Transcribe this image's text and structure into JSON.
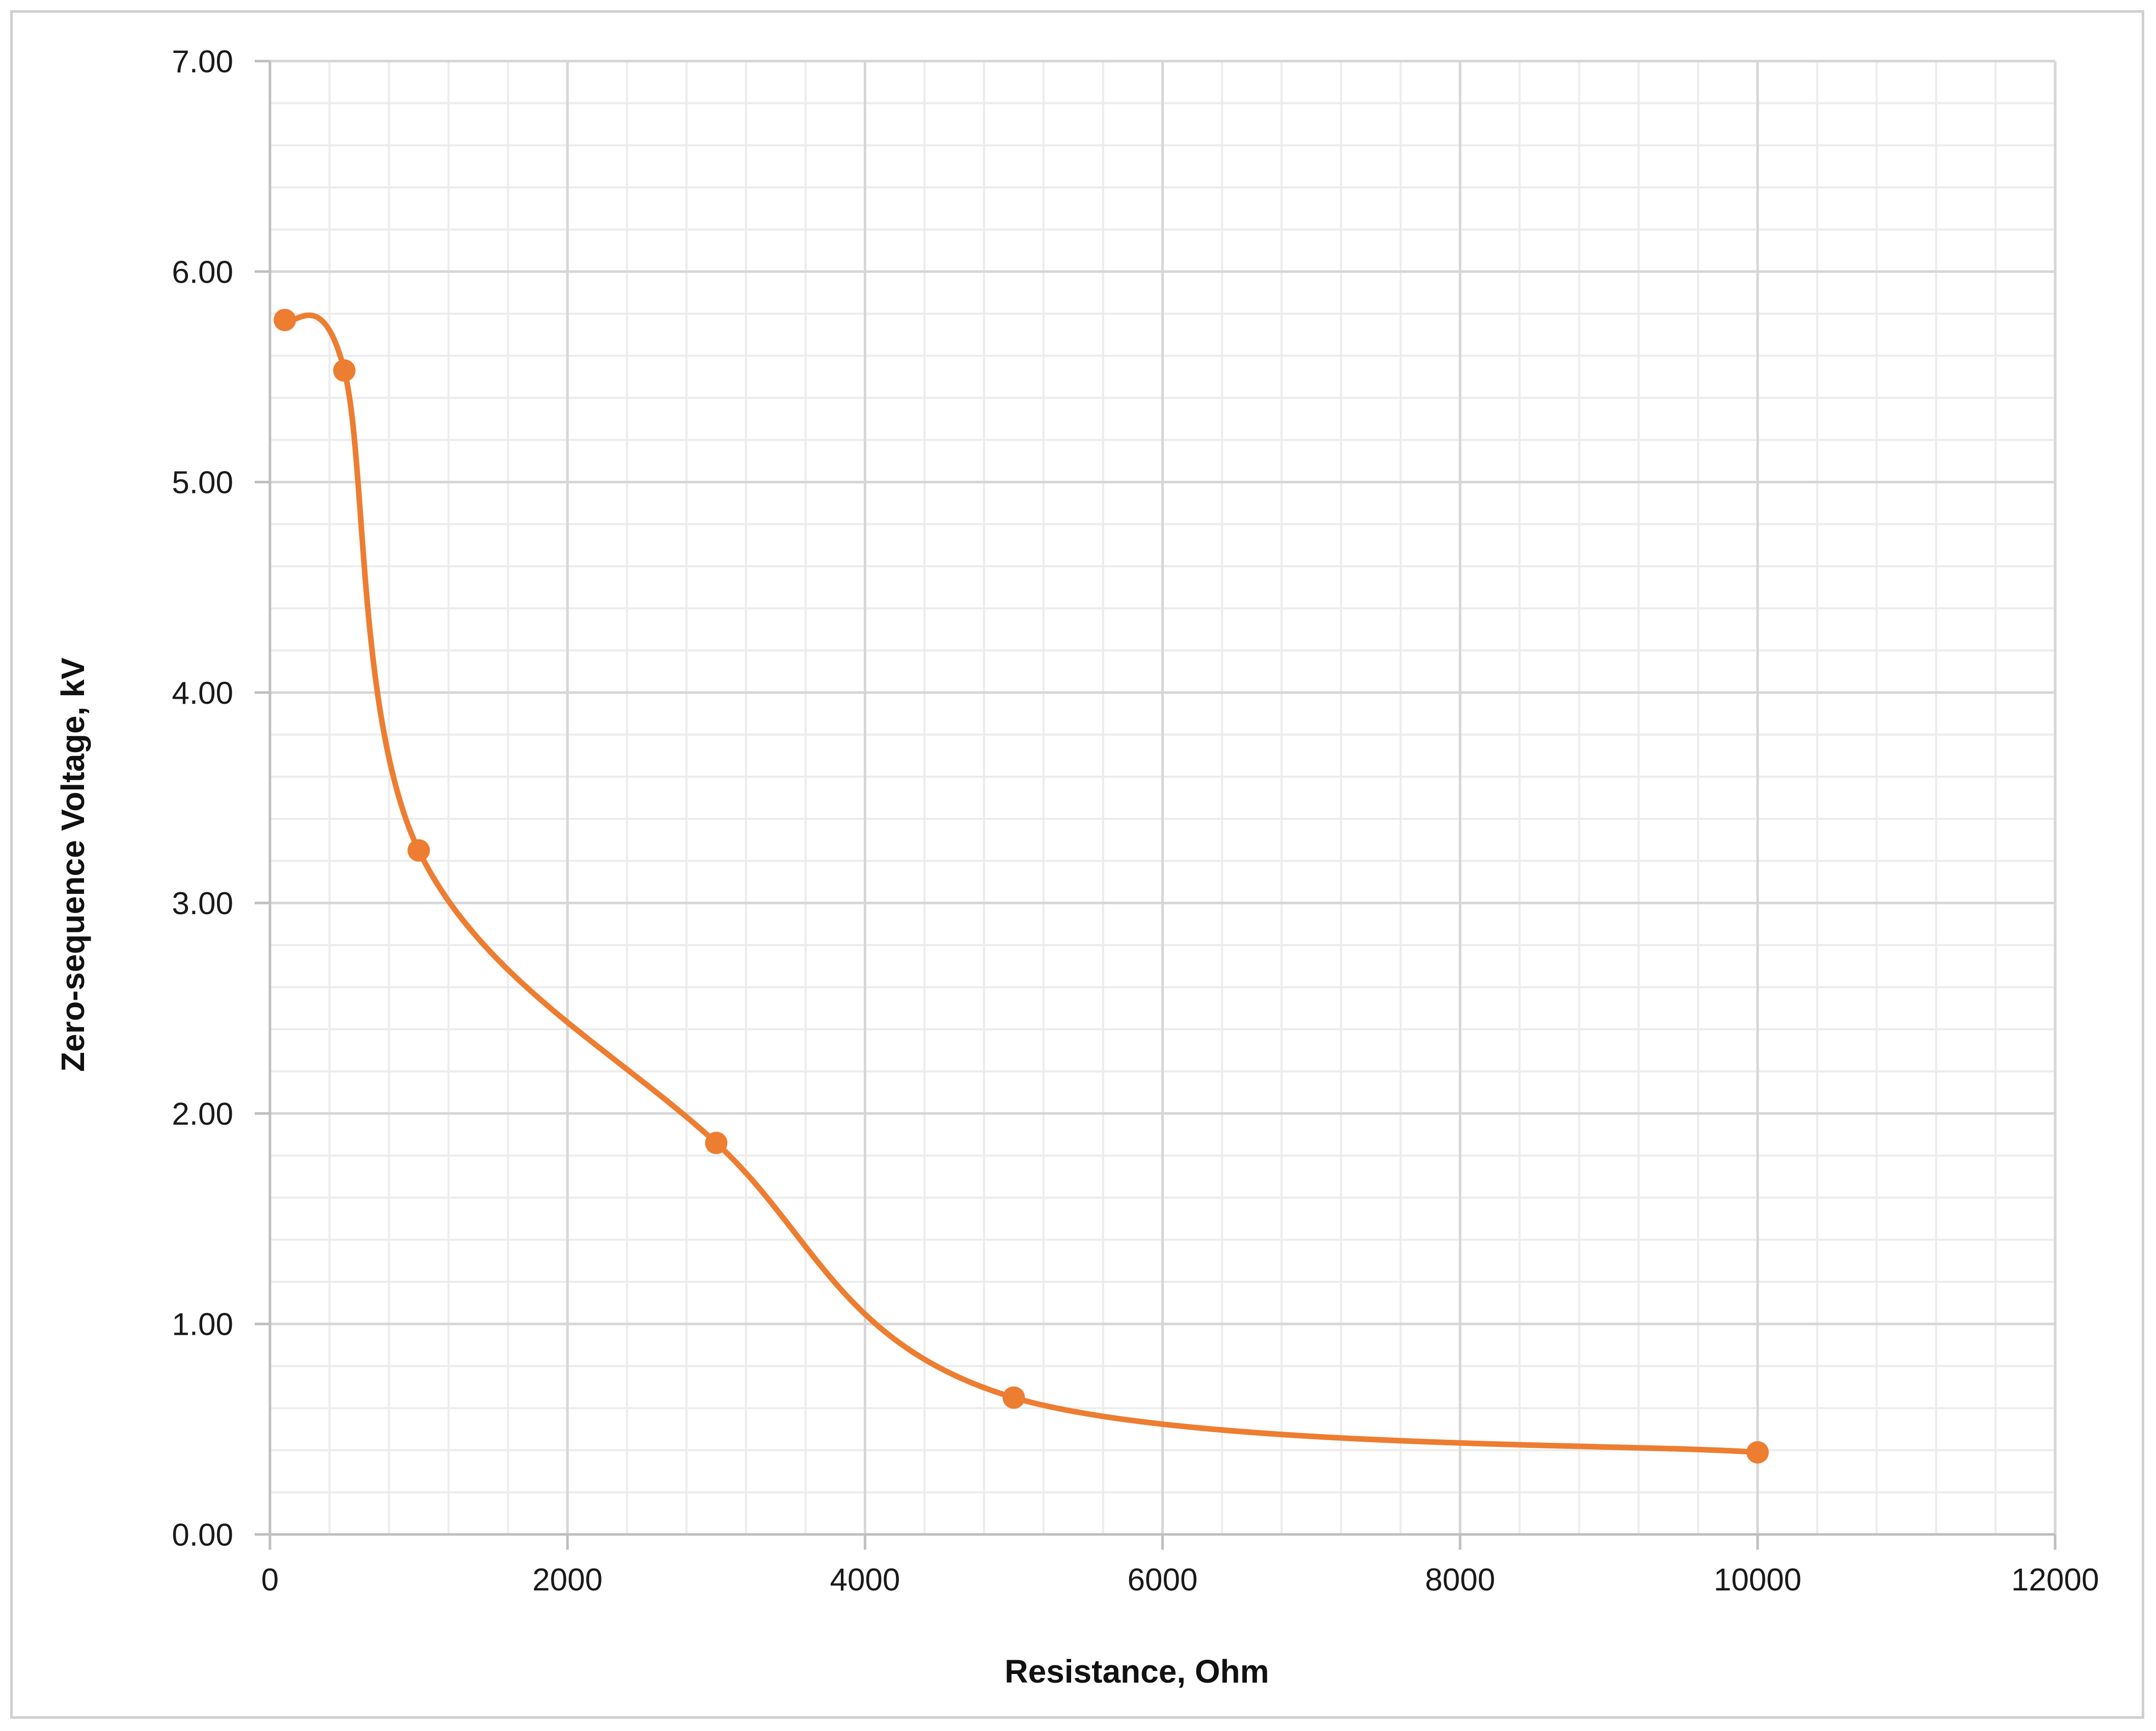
{
  "chart_data": {
    "type": "line",
    "title": "",
    "xlabel": "Resistance, Ohm",
    "ylabel": "Zero-sequence Voltage, kV",
    "xlim": [
      0,
      12000
    ],
    "ylim": [
      0,
      7
    ],
    "x_ticks": [
      "0",
      "2000",
      "4000",
      "6000",
      "8000",
      "10000",
      "12000"
    ],
    "y_ticks": [
      "0.00",
      "1.00",
      "2.00",
      "3.00",
      "4.00",
      "5.00",
      "6.00",
      "7.00"
    ],
    "grid": true,
    "minor_grid": true,
    "legend": "none",
    "smoothed": true,
    "series": [
      {
        "color": "#ED7D31",
        "x": [
          100,
          500,
          1000,
          3000,
          5000,
          10000
        ],
        "y": [
          5.77,
          5.53,
          3.25,
          1.86,
          0.65,
          0.39
        ]
      }
    ]
  }
}
